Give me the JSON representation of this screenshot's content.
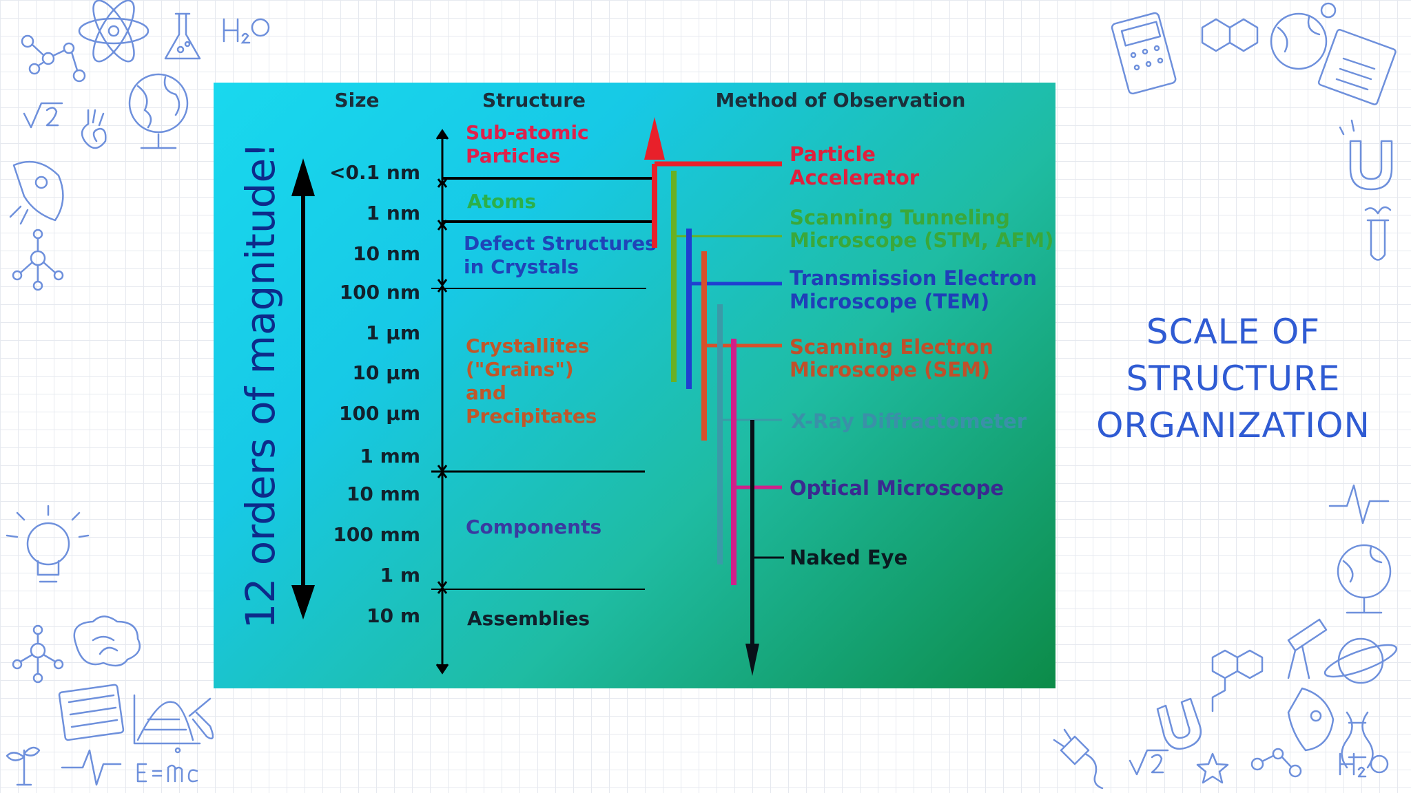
{
  "slide": {
    "title": "SCALE OF STRUCTURE ORGANIZATION"
  },
  "diagram": {
    "axis_label": "12 orders of magnitude!",
    "headers": {
      "size": "Size",
      "structure": "Structure",
      "method": "Method of Observation"
    },
    "sizes": [
      "<0.1 nm",
      "1 nm",
      "10 nm",
      "100 nm",
      "1 µm",
      "10 µm",
      "100 µm",
      "1 mm",
      "10 mm",
      "100 mm",
      "1 m",
      "10 m"
    ],
    "structures": [
      {
        "lines": [
          "Sub-atomic",
          "Particles"
        ],
        "color": "#e0204a"
      },
      {
        "lines": [
          "Atoms"
        ],
        "color": "#2bb04a"
      },
      {
        "lines": [
          "Defect Structures",
          "in Crystals"
        ],
        "color": "#1f44b8"
      },
      {
        "lines": [
          "Crystallites",
          "(\"Grains\")",
          "and",
          "Precipitates"
        ],
        "color": "#c0572a"
      },
      {
        "lines": [
          "Components"
        ],
        "color": "#3a3aa0"
      },
      {
        "lines": [
          "Assemblies"
        ],
        "color": "#10202c"
      }
    ],
    "methods": [
      {
        "lines": [
          "Particle",
          "Accelerator"
        ],
        "color": "#e0203c"
      },
      {
        "lines": [
          "Scanning Tunneling",
          "Microscope (STM, AFM)"
        ],
        "color": "#3aa83a"
      },
      {
        "lines": [
          "Transmission Electron",
          "Microscope (TEM)"
        ],
        "color": "#1f3fb8"
      },
      {
        "lines": [
          "Scanning Electron",
          "Microscope (SEM)"
        ],
        "color": "#c0502a"
      },
      {
        "lines": [
          "X-Ray Diffractometer"
        ],
        "color": "#3a90a8"
      },
      {
        "lines": [
          "Optical Microscope"
        ],
        "color": "#3a2a90"
      },
      {
        "lines": [
          "Naked Eye"
        ],
        "color": "#0a1a20"
      }
    ],
    "line_colors": {
      "accelerator": "#e8202a",
      "stm": "#6ab022",
      "tem": "#1f3fd0",
      "sem": "#d8502a",
      "xray": "#3a9aa8",
      "optical": "#d0208a",
      "eye": "#081018"
    }
  }
}
